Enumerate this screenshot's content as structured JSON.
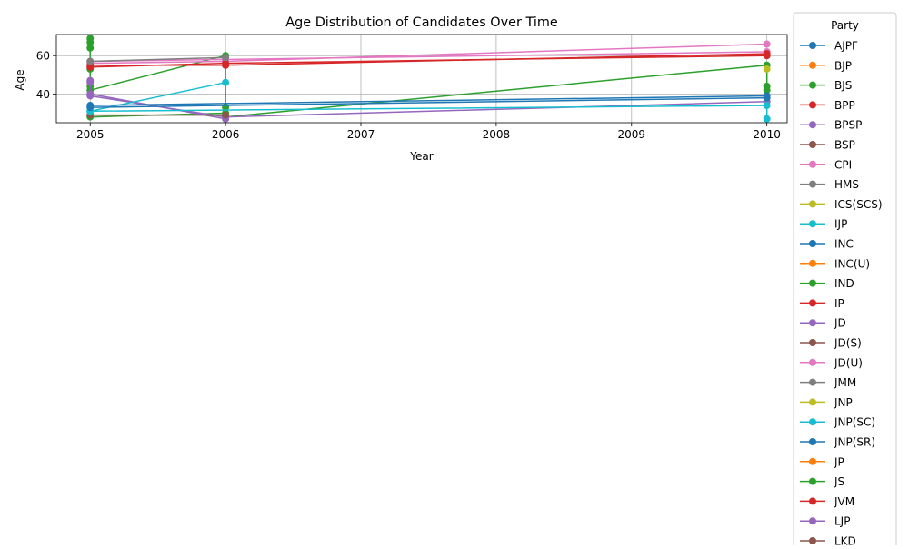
{
  "chart_data": {
    "type": "line",
    "title": "Age Distribution of Candidates Over Time",
    "xlabel": "Year",
    "ylabel": "Age",
    "xlim": [
      2004.75,
      2010.15
    ],
    "ylim": [
      25,
      71
    ],
    "x_ticks": [
      "2005",
      "2006",
      "2007",
      "2008",
      "2009",
      "2010"
    ],
    "y_ticks": [
      "40",
      "60"
    ],
    "grid": true,
    "legend": {
      "title": "Party",
      "placement": "outside-right",
      "entries": [
        "AJPF",
        "BJP",
        "BJS",
        "BPP",
        "BPSP",
        "BSP",
        "CPI",
        "HMS",
        "ICS(SCS)",
        "IJP",
        "INC",
        "INC(U)",
        "IND",
        "IP",
        "JD",
        "JD(S)",
        "JD(U)",
        "JMM",
        "JNP",
        "JNP(SC)",
        "JNP(SR)",
        "JP",
        "JS",
        "JVM",
        "LJP",
        "LKD"
      ]
    },
    "palette": [
      "#1f77b4",
      "#ff7f0e",
      "#2ca02c",
      "#d62728",
      "#9467bd",
      "#8c564b",
      "#e377c2",
      "#7f7f7f",
      "#bcbd22",
      "#17becf"
    ],
    "series": [
      {
        "name": "BJS",
        "color": "#2ca02c",
        "points": [
          [
            2005,
            69
          ],
          [
            2005,
            67
          ],
          [
            2005,
            64
          ],
          [
            2005,
            53
          ],
          [
            2005,
            44
          ],
          [
            2005,
            42
          ],
          [
            2006,
            60
          ],
          [
            2006,
            59
          ],
          [
            2006,
            28
          ],
          [
            2010,
            55
          ],
          [
            2010,
            44
          ],
          [
            2010,
            42
          ]
        ]
      },
      {
        "name": "JS",
        "color": "#2ca02c",
        "points": [
          [
            2005,
            28
          ],
          [
            2006,
            30
          ],
          [
            2006,
            33
          ]
        ]
      },
      {
        "name": "CPI",
        "color": "#e377c2",
        "points": [
          [
            2005,
            57
          ],
          [
            2006,
            58
          ],
          [
            2010,
            62
          ]
        ]
      },
      {
        "name": "JD(U)",
        "color": "#e377c2",
        "points": [
          [
            2005,
            56
          ],
          [
            2006,
            57
          ],
          [
            2010,
            66
          ]
        ]
      },
      {
        "name": "IP",
        "color": "#d62728",
        "points": [
          [
            2005,
            55
          ],
          [
            2006,
            55
          ],
          [
            2010,
            61
          ]
        ]
      },
      {
        "name": "JVM",
        "color": "#d62728",
        "points": [
          [
            2005,
            54
          ],
          [
            2006,
            56
          ],
          [
            2010,
            60
          ]
        ]
      },
      {
        "name": "JD",
        "color": "#9467bd",
        "points": [
          [
            2005,
            47
          ],
          [
            2005,
            46
          ],
          [
            2005,
            40
          ],
          [
            2006,
            27
          ]
        ]
      },
      {
        "name": "LJP",
        "color": "#9467bd",
        "points": [
          [
            2005,
            39
          ],
          [
            2006,
            28
          ],
          [
            2010,
            36
          ]
        ]
      },
      {
        "name": "BSP",
        "color": "#8c564b",
        "points": [
          [
            2005,
            29
          ],
          [
            2006,
            29
          ]
        ]
      },
      {
        "name": "IJP",
        "color": "#17becf",
        "points": [
          [
            2005,
            31
          ],
          [
            2006,
            46
          ]
        ]
      },
      {
        "name": "JNP(SC)",
        "color": "#17becf",
        "points": [
          [
            2005,
            31
          ],
          [
            2010,
            34
          ],
          [
            2010,
            27
          ]
        ]
      },
      {
        "name": "INC",
        "color": "#1f77b4",
        "points": [
          [
            2005,
            34
          ],
          [
            2010,
            39
          ]
        ]
      },
      {
        "name": "JNP(SR)",
        "color": "#1f77b4",
        "points": [
          [
            2005,
            33
          ],
          [
            2010,
            38
          ]
        ]
      },
      {
        "name": "HMS",
        "color": "#7f7f7f",
        "points": [
          [
            2005,
            57
          ],
          [
            2006,
            59
          ]
        ]
      },
      {
        "name": "JNP",
        "color": "#bcbd22",
        "points": [
          [
            2010,
            53
          ]
        ]
      }
    ]
  }
}
